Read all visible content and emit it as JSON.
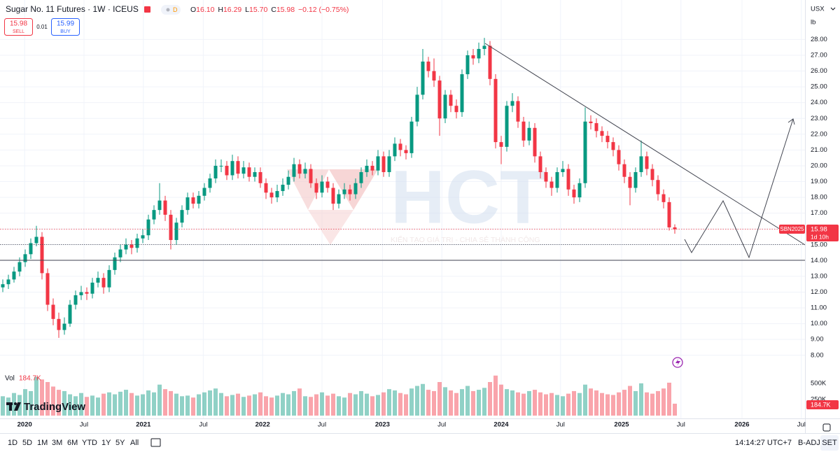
{
  "header": {
    "symbol": "Sugar No. 11 Futures · 1W · ICEUS",
    "flag": "D",
    "ohlc": [
      {
        "k": "O",
        "v": "16.10"
      },
      {
        "k": "H",
        "v": "16.29"
      },
      {
        "k": "L",
        "v": "15.70"
      },
      {
        "k": "C",
        "v": "15.98"
      }
    ],
    "change": "−0.12 (−0.75%)",
    "sell": {
      "price": "15.98",
      "label": "SELL"
    },
    "spread": "0.01",
    "buy": {
      "price": "15.99",
      "label": "BUY"
    },
    "currency": "USX",
    "unit": "lb",
    "vol_label": "Vol",
    "vol_value": "184.7K"
  },
  "watermark": {
    "brand": "HCT",
    "slogan": "KIẾN TẠO GIÁ TRỊ - CHIA SẺ THÀNH CÔNG"
  },
  "logo": "TradingView",
  "badges": {
    "contract": "SBN2025",
    "countdown": "1d 10h"
  },
  "toolbar": {
    "ranges": [
      "1D",
      "5D",
      "1M",
      "3M",
      "6M",
      "YTD",
      "1Y",
      "5Y",
      "All"
    ],
    "clock": "14:14:27 UTC+7",
    "adjust": "B-ADJ",
    "session": "SET"
  },
  "chart_data": {
    "type": "candlestick",
    "grid": true,
    "up_color": "#089981",
    "down_color": "#f23645",
    "xlim": [
      -0.5,
      143.25
    ],
    "xticks": [
      {
        "value": 3.9,
        "label": "2020"
      },
      {
        "value": 14.5,
        "label": "Jul"
      },
      {
        "value": 25.1,
        "label": "2021"
      },
      {
        "value": 35.8,
        "label": "Jul"
      },
      {
        "value": 46.4,
        "label": "2022"
      },
      {
        "value": 57,
        "label": "Jul"
      },
      {
        "value": 67.8,
        "label": "2023"
      },
      {
        "value": 78.4,
        "label": "Jul"
      },
      {
        "value": 89,
        "label": "2024"
      },
      {
        "value": 99.6,
        "label": "Jul"
      },
      {
        "value": 110.5,
        "label": "2025"
      },
      {
        "value": 121.1,
        "label": "Jul"
      },
      {
        "value": 132,
        "label": "2026"
      },
      {
        "value": 142.6,
        "label": "Jul"
      }
    ],
    "ylim": [
      4.0,
      30.5
    ],
    "yticks": [
      {
        "value": 8,
        "label": "8.00"
      },
      {
        "value": 9,
        "label": "9.00"
      },
      {
        "value": 10,
        "label": "10.00"
      },
      {
        "value": 11,
        "label": "11.00"
      },
      {
        "value": 12,
        "label": "12.00"
      },
      {
        "value": 13,
        "label": "13.00"
      },
      {
        "value": 14,
        "label": "14.00"
      },
      {
        "value": 15,
        "label": "15.00"
      },
      {
        "value": 16,
        "label": "16.00"
      },
      {
        "value": 17,
        "label": "17.00"
      },
      {
        "value": 18,
        "label": "18.00"
      },
      {
        "value": 19,
        "label": "19.00"
      },
      {
        "value": 20,
        "label": "20.00"
      },
      {
        "value": 21,
        "label": "21.00"
      },
      {
        "value": 22,
        "label": "22.00"
      },
      {
        "value": 23,
        "label": "23.00"
      },
      {
        "value": 24,
        "label": "24.00"
      },
      {
        "value": 25,
        "label": "25.00"
      },
      {
        "value": 26,
        "label": "26.00"
      },
      {
        "value": 27,
        "label": "27.00"
      },
      {
        "value": 28,
        "label": "28.00"
      }
    ],
    "y2lim": [
      0,
      650
    ],
    "y2ticks": [
      {
        "value": 250,
        "label": "250K"
      },
      {
        "value": 500,
        "label": "500K"
      }
    ],
    "open": [
      12.3,
      12.5,
      12.8,
      13.3,
      13.9,
      14.4,
      15.1,
      15.5,
      13.2,
      11.2,
      10.3,
      9.6,
      10.0,
      11.2,
      11.8,
      12.0,
      11.9,
      12.6,
      12.9,
      12.3,
      13.4,
      14.2,
      14.7,
      15.0,
      14.8,
      15.4,
      15.6,
      16.6,
      17.2,
      17.8,
      16.9,
      15.3,
      16.4,
      17.2,
      18.0,
      17.6,
      18.1,
      18.6,
      19.2,
      20.0,
      20.0,
      19.4,
      20.3,
      19.5,
      19.9,
      19.3,
      19.6,
      18.9,
      18.3,
      18.0,
      18.4,
      18.8,
      19.3,
      20.1,
      19.5,
      19.8,
      18.9,
      18.3,
      19.0,
      18.6,
      17.6,
      18.2,
      18.5,
      18.2,
      18.9,
      19.6,
      20.0,
      19.7,
      20.6,
      19.6,
      20.6,
      21.4,
      21.0,
      20.8,
      22.8,
      24.5,
      26.6,
      26.0,
      25.4,
      23.0,
      24.5,
      23.8,
      23.4,
      25.8,
      27.0,
      26.8,
      27.4,
      27.6,
      25.5,
      21.5,
      21.2,
      23.8,
      24.1,
      22.8,
      21.6,
      22.4,
      20.6,
      19.6,
      19.0,
      18.6,
      19.6,
      19.8,
      18.5,
      18.0,
      18.9,
      22.8,
      22.7,
      22.2,
      21.9,
      21.5,
      21.0,
      20.1,
      19.3,
      18.6,
      19.6,
      20.6,
      19.8,
      19.1,
      18.2,
      17.7,
      16.1
    ],
    "high": [
      12.8,
      13.1,
      13.6,
      14.2,
      14.7,
      15.4,
      16.2,
      15.8,
      13.5,
      11.6,
      10.7,
      10.4,
      11.5,
      12.1,
      12.4,
      12.3,
      12.9,
      13.3,
      13.2,
      13.7,
      14.5,
      15.0,
      15.4,
      15.3,
      15.7,
      16.0,
      16.9,
      17.5,
      18.9,
      18.1,
      17.2,
      16.7,
      17.5,
      18.3,
      18.3,
      18.4,
      18.9,
      19.5,
      20.4,
      20.4,
      20.3,
      20.7,
      20.6,
      20.3,
      20.2,
      19.9,
      19.9,
      19.2,
      18.6,
      18.8,
      19.2,
      19.7,
      20.5,
      20.4,
      20.2,
      20.1,
      19.2,
      19.4,
      19.3,
      18.9,
      18.5,
      18.9,
      18.8,
      19.2,
      19.9,
      20.4,
      20.3,
      21.0,
      20.9,
      21.0,
      21.8,
      21.7,
      21.3,
      23.1,
      25.0,
      27.4,
      26.9,
      26.8,
      25.7,
      24.8,
      24.8,
      24.2,
      26.1,
      27.3,
      27.4,
      27.8,
      28.1,
      27.9,
      25.8,
      21.9,
      24.1,
      24.6,
      24.4,
      23.1,
      22.8,
      22.7,
      20.9,
      19.9,
      19.3,
      19.9,
      20.3,
      20.1,
      18.8,
      19.2,
      23.7,
      23.2,
      23.0,
      22.5,
      22.2,
      21.8,
      21.3,
      20.4,
      19.6,
      19.9,
      21.6,
      20.9,
      20.1,
      19.4,
      18.5,
      18.0,
      16.29
    ],
    "low": [
      12.0,
      12.2,
      12.6,
      13.0,
      13.6,
      14.1,
      14.9,
      12.8,
      10.8,
      9.9,
      9.1,
      9.3,
      9.8,
      10.9,
      11.5,
      11.5,
      11.6,
      12.3,
      11.9,
      12.0,
      13.1,
      13.9,
      14.4,
      14.4,
      14.5,
      15.1,
      15.3,
      16.3,
      16.9,
      16.5,
      14.7,
      15.0,
      16.1,
      16.9,
      17.3,
      17.3,
      17.8,
      18.3,
      18.9,
      19.6,
      19.1,
      19.1,
      19.2,
      19.2,
      19.0,
      19.0,
      18.6,
      17.9,
      17.6,
      17.7,
      18.1,
      18.5,
      19.0,
      19.2,
      19.2,
      18.6,
      17.9,
      18.0,
      18.3,
      17.2,
      17.3,
      17.9,
      17.8,
      17.9,
      18.6,
      19.3,
      19.4,
      19.4,
      19.3,
      19.3,
      20.3,
      20.6,
      20.4,
      20.5,
      22.5,
      24.2,
      25.6,
      25.0,
      21.9,
      22.7,
      23.4,
      23.0,
      23.1,
      25.5,
      26.4,
      26.5,
      27.0,
      25.1,
      21.1,
      20.1,
      20.9,
      23.4,
      22.4,
      21.2,
      21.3,
      20.2,
      19.2,
      18.6,
      18.1,
      18.3,
      19.3,
      18.1,
      17.6,
      17.7,
      18.6,
      22.3,
      21.8,
      21.5,
      21.1,
      20.6,
      19.7,
      18.9,
      17.5,
      18.3,
      19.3,
      19.4,
      18.7,
      17.8,
      17.3,
      15.9,
      15.7
    ],
    "close": [
      12.5,
      12.8,
      13.3,
      13.9,
      14.4,
      15.1,
      15.5,
      13.2,
      11.2,
      10.3,
      9.6,
      10.0,
      11.2,
      11.8,
      12.0,
      11.9,
      12.6,
      12.9,
      12.3,
      13.4,
      14.2,
      14.7,
      15.0,
      14.8,
      15.4,
      15.6,
      16.6,
      17.2,
      17.8,
      16.9,
      15.3,
      16.4,
      17.2,
      18.0,
      17.6,
      18.1,
      18.6,
      19.2,
      20.0,
      20.0,
      19.4,
      20.3,
      19.5,
      19.9,
      19.3,
      19.6,
      18.9,
      18.3,
      18.0,
      18.4,
      18.8,
      19.3,
      20.1,
      19.5,
      19.8,
      18.9,
      18.3,
      19.0,
      18.6,
      17.6,
      18.2,
      18.5,
      18.2,
      18.9,
      19.6,
      20.0,
      19.7,
      20.6,
      19.6,
      20.6,
      21.4,
      21.0,
      20.8,
      22.8,
      24.5,
      26.6,
      26.0,
      25.4,
      23.0,
      24.5,
      23.8,
      23.4,
      25.8,
      27.0,
      26.8,
      27.4,
      27.6,
      25.5,
      21.5,
      21.2,
      23.8,
      24.1,
      22.8,
      21.6,
      22.4,
      20.6,
      19.6,
      19.0,
      18.6,
      19.6,
      19.8,
      18.5,
      18.0,
      18.9,
      22.8,
      22.7,
      22.2,
      21.9,
      21.5,
      21.0,
      20.1,
      19.3,
      18.6,
      19.6,
      20.6,
      19.8,
      19.1,
      18.2,
      17.7,
      16.1,
      15.98
    ],
    "volume": [
      300,
      280,
      350,
      320,
      410,
      380,
      600,
      560,
      520,
      450,
      400,
      380,
      330,
      300,
      350,
      290,
      310,
      280,
      340,
      360,
      330,
      370,
      400,
      350,
      310,
      330,
      390,
      360,
      480,
      410,
      380,
      340,
      300,
      310,
      280,
      330,
      360,
      390,
      420,
      350,
      300,
      320,
      340,
      290,
      310,
      330,
      360,
      300,
      280,
      310,
      350,
      330,
      380,
      420,
      300,
      290,
      330,
      360,
      310,
      340,
      300,
      280,
      350,
      330,
      380,
      340,
      300,
      320,
      360,
      410,
      390,
      350,
      330,
      420,
      460,
      490,
      400,
      380,
      520,
      440,
      390,
      350,
      410,
      460,
      380,
      400,
      430,
      520,
      620,
      480,
      410,
      390,
      360,
      340,
      380,
      400,
      360,
      330,
      350,
      320,
      300,
      340,
      380,
      350,
      480,
      420,
      390,
      350,
      330,
      320,
      360,
      400,
      460,
      380,
      500,
      360,
      340,
      380,
      420,
      510,
      184.7
    ]
  }
}
